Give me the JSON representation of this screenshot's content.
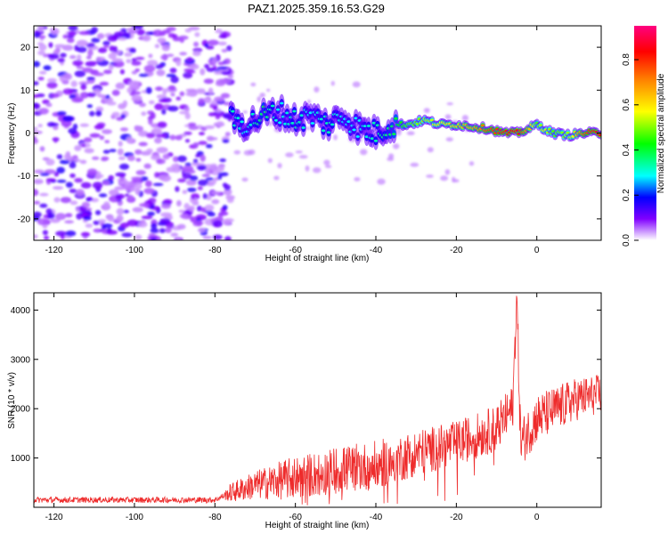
{
  "title": "PAZ1.2025.359.16.53.G29",
  "colors": {
    "snr_line": "#ee2b2b",
    "axis": "#000000",
    "heat_noise": "#8a2be2"
  },
  "chart_data": [
    {
      "type": "heatmap",
      "xlabel": "Height of straight line (km)",
      "ylabel": "Frequency (Hz)",
      "xlim": [
        -125,
        16
      ],
      "ylim": [
        -25,
        25
      ],
      "x_ticks": [
        -120,
        -100,
        -80,
        -60,
        -40,
        -20,
        0
      ],
      "x_tick_labels": [
        "-120",
        "-100",
        "-80",
        "-60",
        "-40",
        "-20",
        "0"
      ],
      "y_ticks": [
        -20,
        -10,
        0,
        10,
        20
      ],
      "y_tick_labels": [
        "-20",
        "-10",
        "0",
        "10",
        "20"
      ],
      "noise_region": [
        -125,
        -78
      ],
      "signal_track": {
        "x": [
          -76,
          -72,
          -68,
          -64,
          -60,
          -56,
          -52,
          -48,
          -44,
          -40,
          -36,
          -32,
          -28,
          -24,
          -20,
          -16,
          -12,
          -8,
          -5,
          -2,
          0,
          2,
          4,
          8,
          12,
          16
        ],
        "freq": [
          3,
          2,
          4,
          5,
          3,
          4,
          2,
          4,
          1,
          0,
          2,
          2,
          3,
          2,
          2,
          1.5,
          1,
          0,
          0,
          1,
          2,
          1,
          0,
          -0.5,
          0,
          0
        ],
        "amplitude": [
          0.35,
          0.3,
          0.4,
          0.3,
          0.35,
          0.3,
          0.35,
          0.3,
          0.3,
          0.35,
          0.4,
          0.5,
          0.55,
          0.6,
          0.65,
          0.7,
          0.8,
          0.85,
          0.9,
          0.7,
          0.5,
          0.6,
          0.5,
          0.55,
          0.8,
          0.9
        ]
      },
      "colorbar": {
        "label": "Normalized spectral amplitude",
        "range": [
          0,
          0.95
        ],
        "ticks": [
          0.0,
          0.2,
          0.4,
          0.6,
          0.8
        ],
        "tick_labels": [
          "0.0",
          "0.2",
          "0.4",
          "0.6",
          "0.8"
        ]
      }
    },
    {
      "type": "line",
      "xlabel": "Height of straight line (km)",
      "ylabel": "SNR (10 * v/v)",
      "xlim": [
        -125,
        16
      ],
      "ylim": [
        0,
        4350
      ],
      "x_ticks": [
        -120,
        -100,
        -80,
        -60,
        -40,
        -20,
        0
      ],
      "x_tick_labels": [
        "-120",
        "-100",
        "-80",
        "-60",
        "-40",
        "-20",
        "0"
      ],
      "y_ticks": [
        1000,
        2000,
        3000,
        4000
      ],
      "y_tick_labels": [
        "1000",
        "2000",
        "3000",
        "4000"
      ],
      "trend_x": [
        -125,
        -80,
        -76,
        -70,
        -60,
        -50,
        -40,
        -30,
        -20,
        -10,
        -6,
        -5,
        -4,
        0,
        5,
        10,
        16
      ],
      "trend_y": [
        150,
        150,
        300,
        450,
        600,
        750,
        850,
        1100,
        1300,
        1600,
        2000,
        4300,
        1300,
        1800,
        2000,
        2200,
        2300
      ],
      "noise_amplitude_x": [
        -125,
        -78,
        -76,
        -60,
        -40,
        -20,
        0,
        16
      ],
      "noise_amplitude_y": [
        60,
        60,
        200,
        450,
        500,
        450,
        500,
        400
      ]
    }
  ]
}
